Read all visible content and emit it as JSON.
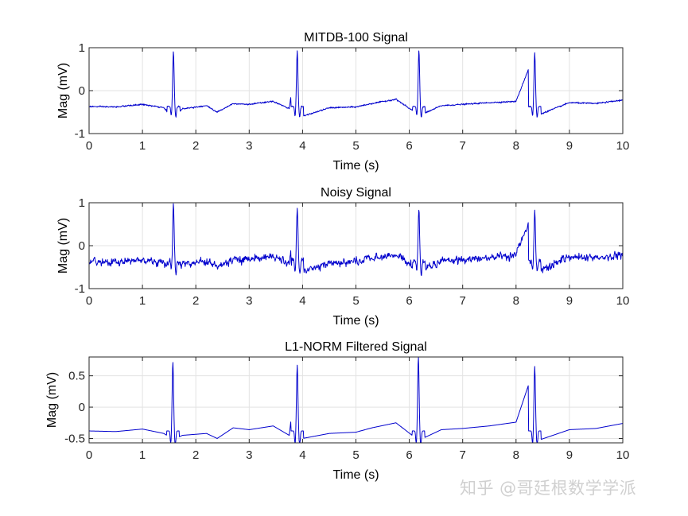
{
  "watermark": "知乎 @哥廷根数学学派",
  "chart_data": [
    {
      "type": "line",
      "title": "MITDB-100 Signal",
      "xlabel": "Time (s)",
      "ylabel": "Mag (mV)",
      "xlim": [
        0,
        10
      ],
      "ylim": [
        -1,
        1
      ],
      "xticks": [
        0,
        1,
        2,
        3,
        4,
        5,
        6,
        7,
        8,
        9,
        10
      ],
      "yticks": [
        -1,
        0,
        1
      ],
      "grid": true,
      "line_color": "#0000cd",
      "series": [
        {
          "name": "",
          "beats": [
            1.58,
            3.9,
            6.18,
            8.35
          ],
          "peak_values": [
            0.92,
            0.92,
            0.94,
            0.88
          ],
          "baseline": -0.37,
          "x": [
            0,
            0.5,
            1.0,
            1.4,
            1.55,
            1.58,
            1.62,
            1.75,
            2.2,
            2.4,
            2.7,
            3.0,
            3.45,
            3.75,
            3.9,
            4.0,
            4.5,
            5.0,
            5.3,
            5.75,
            6.1,
            6.18,
            6.25,
            6.6,
            7.0,
            7.5,
            8.0,
            8.35,
            8.45,
            9.0,
            9.5,
            10.0
          ],
          "y": [
            -0.37,
            -0.38,
            -0.32,
            -0.4,
            -0.6,
            0.92,
            -0.6,
            -0.42,
            -0.35,
            -0.5,
            -0.3,
            -0.32,
            -0.25,
            -0.42,
            0.92,
            -0.6,
            -0.4,
            -0.38,
            -0.3,
            -0.2,
            -0.5,
            0.94,
            -0.55,
            -0.35,
            -0.32,
            -0.28,
            -0.25,
            0.88,
            -0.55,
            -0.28,
            -0.3,
            -0.22
          ]
        }
      ]
    },
    {
      "type": "line",
      "title": "Noisy Signal",
      "xlabel": "Time (s)",
      "ylabel": "Mag (mV)",
      "xlim": [
        0,
        10
      ],
      "ylim": [
        -1,
        1
      ],
      "xticks": [
        0,
        1,
        2,
        3,
        4,
        5,
        6,
        7,
        8,
        9,
        10
      ],
      "yticks": [
        -1,
        0,
        1
      ],
      "grid": true,
      "line_color": "#0000cd",
      "series": [
        {
          "name": "",
          "beats": [
            1.58,
            3.9,
            6.18,
            8.35
          ],
          "peak_values": [
            0.99,
            0.92,
            0.92,
            0.82
          ],
          "baseline": -0.37,
          "noise_amplitude": 0.08,
          "x": [
            0,
            0.5,
            1.0,
            1.4,
            1.55,
            1.58,
            1.62,
            1.75,
            2.2,
            2.4,
            2.7,
            3.0,
            3.45,
            3.75,
            3.9,
            4.0,
            4.5,
            5.0,
            5.3,
            5.75,
            6.1,
            6.18,
            6.25,
            6.6,
            7.0,
            7.5,
            8.0,
            8.35,
            8.45,
            9.0,
            9.5,
            10.0
          ],
          "y": [
            -0.37,
            -0.38,
            -0.32,
            -0.4,
            -0.6,
            0.99,
            -0.6,
            -0.42,
            -0.35,
            -0.5,
            -0.3,
            -0.32,
            -0.25,
            -0.42,
            0.92,
            -0.6,
            -0.4,
            -0.38,
            -0.3,
            -0.2,
            -0.5,
            0.92,
            -0.55,
            -0.35,
            -0.32,
            -0.28,
            -0.2,
            0.82,
            -0.55,
            -0.28,
            -0.3,
            -0.22
          ]
        }
      ]
    },
    {
      "type": "line",
      "title": "L1-NORM Filtered Signal",
      "xlabel": "Time (s)",
      "ylabel": "Mag (mV)",
      "xlim": [
        0,
        10
      ],
      "ylim": [
        -0.57,
        0.8
      ],
      "xticks": [
        0,
        1,
        2,
        3,
        4,
        5,
        6,
        7,
        8,
        9,
        10
      ],
      "yticks": [
        -0.5,
        0,
        0.5
      ],
      "ytick_labels": [
        "-0.5",
        "0",
        "0.5"
      ],
      "grid": true,
      "line_color": "#0000cd",
      "series": [
        {
          "name": "",
          "beats": [
            1.57,
            3.9,
            6.17,
            8.35
          ],
          "peak_values": [
            0.72,
            0.67,
            0.8,
            0.65
          ],
          "baseline": -0.38,
          "x": [
            0,
            0.5,
            1.0,
            1.4,
            1.55,
            1.57,
            1.62,
            1.75,
            2.2,
            2.4,
            2.7,
            3.0,
            3.45,
            3.75,
            3.9,
            4.0,
            4.5,
            5.0,
            5.3,
            5.75,
            6.1,
            6.17,
            6.25,
            6.6,
            7.0,
            7.5,
            8.0,
            8.35,
            8.45,
            9.0,
            9.5,
            10.0
          ],
          "y": [
            -0.38,
            -0.39,
            -0.35,
            -0.42,
            -0.5,
            0.72,
            -0.5,
            -0.45,
            -0.42,
            -0.5,
            -0.33,
            -0.36,
            -0.3,
            -0.45,
            0.67,
            -0.5,
            -0.42,
            -0.4,
            -0.33,
            -0.25,
            -0.48,
            0.8,
            -0.5,
            -0.36,
            -0.34,
            -0.3,
            -0.24,
            0.65,
            -0.52,
            -0.36,
            -0.34,
            -0.26
          ]
        }
      ]
    }
  ]
}
